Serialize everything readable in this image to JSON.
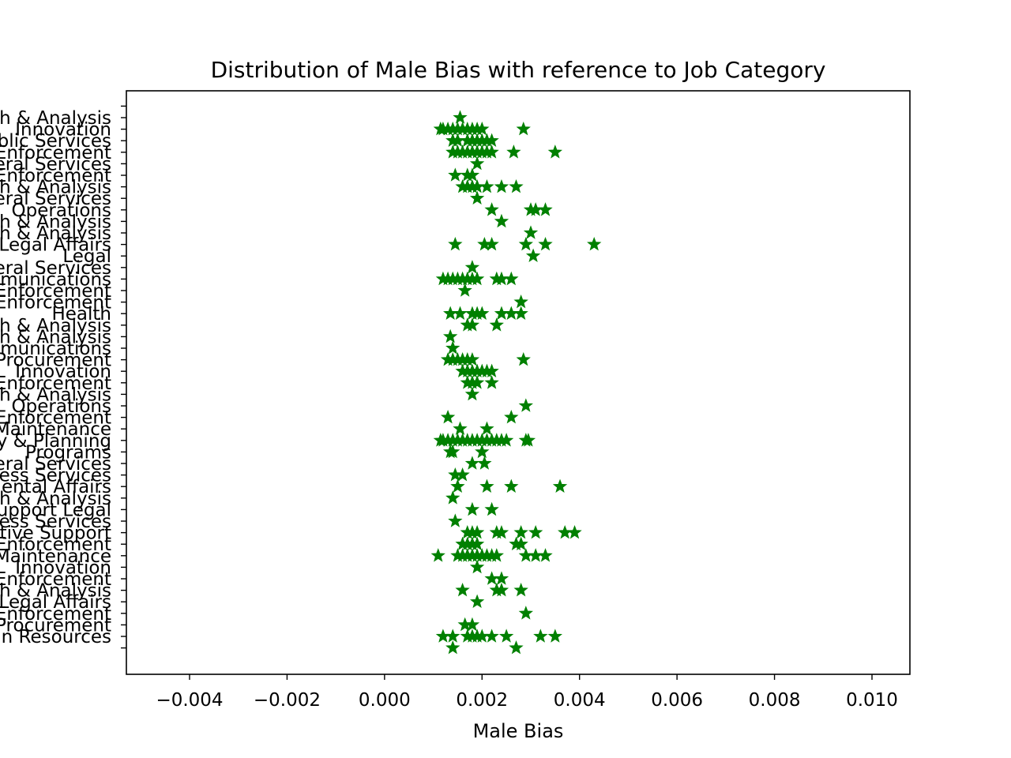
{
  "chart_data": {
    "type": "scatter",
    "title": "Distribution of Male Bias with reference to Job Category",
    "xlabel": "Male Bias",
    "ylabel": "",
    "xlim": [
      -0.0053,
      0.0108
    ],
    "x_ticks": [
      -0.004,
      -0.002,
      0.0,
      0.002,
      0.004,
      0.006,
      0.008,
      0.01
    ],
    "x_tick_labels": [
      "−0.004",
      "−0.002",
      "0.000",
      "0.002",
      "0.004",
      "0.006",
      "0.008",
      "0.010"
    ],
    "grid": false,
    "legend": "none",
    "marker": "star",
    "color": "#008000",
    "categories": [
      "Human Resources",
      "Procurement",
      "Enforcement",
      "Legal Affairs",
      "Research & Analysis",
      "Enforcement",
      "Innovation",
      "Maintenance",
      "Enforcement",
      "Administrative Support",
      "Business Services",
      "Support Legal",
      "Research & Analysis",
      "Governmental Affairs",
      "Business Services",
      "General Services",
      "Programs",
      "Policy & Planning",
      "Maintenance",
      "Enforcement",
      "Operations",
      "Research & Analysis",
      "Enforcement",
      "Innovation",
      "Procurement",
      "Communications",
      "Research & Analysis",
      "Research & Analysis",
      "Health",
      "Enforcement",
      "Enforcement",
      "Communications",
      "General Services",
      "Legal",
      "Legal Affairs",
      "Research & Analysis",
      "Research & Analysis",
      "Operations",
      "General Services",
      "Research & Analysis",
      "Enforcement",
      "General Services",
      "Enforcement",
      "Public Services",
      "Innovation",
      "Research & Analysis"
    ],
    "points": [
      {
        "category_index": 45,
        "values": [
          0.00155
        ]
      },
      {
        "category_index": 44,
        "values": [
          0.00115,
          0.0012,
          0.0013,
          0.0014,
          0.0015,
          0.0016,
          0.0017,
          0.0018,
          0.0019,
          0.002,
          0.00285
        ]
      },
      {
        "category_index": 43,
        "values": [
          0.0014,
          0.0015,
          0.0017,
          0.0018,
          0.0019,
          0.002,
          0.0021,
          0.0022
        ]
      },
      {
        "category_index": 42,
        "values": [
          0.0014,
          0.0015,
          0.0016,
          0.0017,
          0.0018,
          0.0019,
          0.002,
          0.0021,
          0.0022,
          0.00265,
          0.0035
        ]
      },
      {
        "category_index": 41,
        "values": [
          0.0019
        ]
      },
      {
        "category_index": 40,
        "values": [
          0.00145,
          0.0017,
          0.0018
        ]
      },
      {
        "category_index": 39,
        "values": [
          0.0016,
          0.0017,
          0.0018,
          0.0019,
          0.0021,
          0.0024,
          0.0027
        ]
      },
      {
        "category_index": 38,
        "values": [
          0.0019
        ]
      },
      {
        "category_index": 37,
        "values": [
          0.0022,
          0.003,
          0.0031,
          0.0033
        ]
      },
      {
        "category_index": 36,
        "values": [
          0.0024
        ]
      },
      {
        "category_index": 35,
        "values": [
          0.003
        ]
      },
      {
        "category_index": 34,
        "values": [
          0.00145,
          0.00205,
          0.0022,
          0.0029,
          0.0033,
          0.0043
        ]
      },
      {
        "category_index": 33,
        "values": [
          0.00305
        ]
      },
      {
        "category_index": 32,
        "values": [
          0.0018
        ]
      },
      {
        "category_index": 31,
        "values": [
          0.0012,
          0.0013,
          0.0014,
          0.0015,
          0.0016,
          0.0017,
          0.0018,
          0.0019,
          0.0023,
          0.0024,
          0.0026
        ]
      },
      {
        "category_index": 30,
        "values": [
          0.00165
        ]
      },
      {
        "category_index": 29,
        "values": [
          0.0028
        ]
      },
      {
        "category_index": 28,
        "values": [
          0.00135,
          0.00155,
          0.0018,
          0.0019,
          0.002,
          0.0024,
          0.0026,
          0.0028
        ]
      },
      {
        "category_index": 27,
        "values": [
          0.0017,
          0.0018,
          0.0023
        ]
      },
      {
        "category_index": 26,
        "values": [
          0.00135
        ]
      },
      {
        "category_index": 25,
        "values": [
          0.0014
        ]
      },
      {
        "category_index": 24,
        "values": [
          0.0013,
          0.0014,
          0.0015,
          0.0016,
          0.0017,
          0.0018,
          0.00285
        ]
      },
      {
        "category_index": 23,
        "values": [
          0.0016,
          0.0017,
          0.0018,
          0.0019,
          0.002,
          0.0021,
          0.0022
        ]
      },
      {
        "category_index": 22,
        "values": [
          0.0017,
          0.0018,
          0.0019,
          0.0022
        ]
      },
      {
        "category_index": 21,
        "values": [
          0.0018
        ]
      },
      {
        "category_index": 20,
        "values": [
          0.0029
        ]
      },
      {
        "category_index": 19,
        "values": [
          0.0013,
          0.0026
        ]
      },
      {
        "category_index": 18,
        "values": [
          0.00155,
          0.0021
        ]
      },
      {
        "category_index": 17,
        "values": [
          0.00115,
          0.0012,
          0.0013,
          0.0014,
          0.0015,
          0.0016,
          0.0017,
          0.0018,
          0.0019,
          0.002,
          0.0021,
          0.0022,
          0.0023,
          0.0024,
          0.0025,
          0.0029,
          0.00295
        ]
      },
      {
        "category_index": 16,
        "values": [
          0.00135,
          0.0014,
          0.002
        ]
      },
      {
        "category_index": 15,
        "values": [
          0.0018,
          0.00205
        ]
      },
      {
        "category_index": 14,
        "values": [
          0.00145,
          0.0016
        ]
      },
      {
        "category_index": 13,
        "values": [
          0.0015,
          0.0021,
          0.0026,
          0.0036
        ]
      },
      {
        "category_index": 12,
        "values": [
          0.0014
        ]
      },
      {
        "category_index": 11,
        "values": [
          0.0018,
          0.0022
        ]
      },
      {
        "category_index": 10,
        "values": [
          0.00145
        ]
      },
      {
        "category_index": 9,
        "values": [
          0.0017,
          0.0018,
          0.0019,
          0.0023,
          0.0024,
          0.0028,
          0.0031,
          0.0037,
          0.0039
        ]
      },
      {
        "category_index": 8,
        "values": [
          0.0016,
          0.0017,
          0.0018,
          0.0019,
          0.0027,
          0.0028
        ]
      },
      {
        "category_index": 7,
        "values": [
          0.0011,
          0.0015,
          0.0016,
          0.0017,
          0.0018,
          0.0019,
          0.002,
          0.0021,
          0.0022,
          0.0023,
          0.0029,
          0.0031,
          0.0033
        ]
      },
      {
        "category_index": 6,
        "values": [
          0.0019
        ]
      },
      {
        "category_index": 5,
        "values": [
          0.0022,
          0.0024
        ]
      },
      {
        "category_index": 4,
        "values": [
          0.0016,
          0.0023,
          0.0024,
          0.0028
        ]
      },
      {
        "category_index": 3,
        "values": [
          0.0019
        ]
      },
      {
        "category_index": 2,
        "values": [
          0.0029
        ]
      },
      {
        "category_index": 1,
        "values": [
          0.00165,
          0.0018
        ]
      },
      {
        "category_index": 0,
        "values": [
          0.0012,
          0.0014,
          0.0017,
          0.0018,
          0.0019,
          0.002,
          0.0022,
          0.0025,
          0.0032,
          0.0035
        ]
      },
      {
        "category_index": -1,
        "values": [
          0.0014,
          0.0027
        ]
      }
    ]
  }
}
